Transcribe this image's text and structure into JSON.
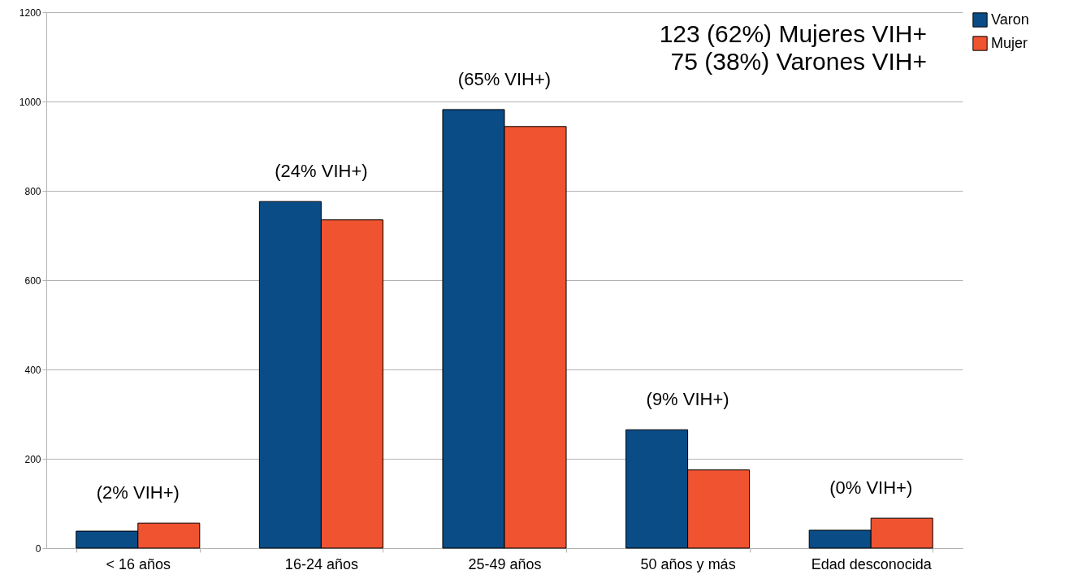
{
  "chart_data": {
    "type": "bar",
    "categories": [
      "< 16 años",
      "16-24 años",
      "25-49 años",
      "50 años y más",
      "Edad desconocida"
    ],
    "series": [
      {
        "name": "Varon",
        "color": "#0a4c86",
        "values": [
          38,
          776,
          982,
          265,
          40
        ]
      },
      {
        "name": "Mujer",
        "color": "#f05330",
        "values": [
          56,
          735,
          944,
          175,
          67
        ]
      }
    ],
    "ylim": [
      0,
      1200
    ],
    "yticks": [
      0,
      200,
      400,
      600,
      800,
      {
        "value": 1000,
        "label": "1000"
      },
      {
        "value": 1200,
        "label": "1200"
      }
    ],
    "grid": "y",
    "legend": "right",
    "annotations": [
      "(2% VIH+)",
      "(24% VIH+)",
      "(65% VIH+)",
      "(9% VIH+)",
      "(0% VIH+)",
      "123 (62%) Mujeres VIH+",
      "75 (38%) Varones VIH+"
    ]
  }
}
